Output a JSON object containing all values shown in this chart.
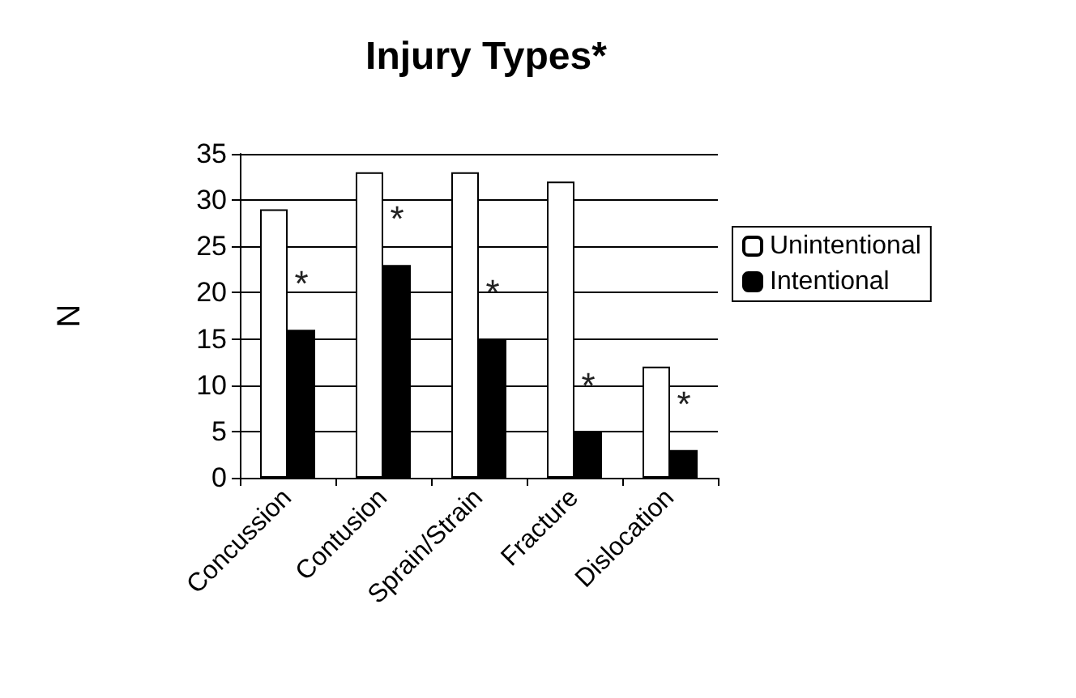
{
  "chart_data": {
    "type": "bar",
    "title": "Injury Types*",
    "ylabel": "N",
    "categories": [
      "Concussion",
      "Contusion",
      "Sprain/Strain",
      "Fracture",
      "Dislocation"
    ],
    "series": [
      {
        "name": "Unintentional",
        "color": "#ffffff",
        "values": [
          29,
          33,
          33,
          32,
          12
        ]
      },
      {
        "name": "Intentional",
        "color": "#000000",
        "values": [
          16,
          23,
          15,
          5,
          3
        ]
      }
    ],
    "ylim": [
      0,
      35
    ],
    "yticks": [
      0,
      5,
      10,
      15,
      20,
      25,
      30,
      35
    ],
    "grid": "y",
    "legend": "right",
    "annotations": [
      {
        "text": "*",
        "x": "Concussion",
        "y": 21
      },
      {
        "text": "*",
        "x": "Contusion",
        "y": 28
      },
      {
        "text": "*",
        "x": "Sprain/Strain",
        "y": 20
      },
      {
        "text": "*",
        "x": "Fracture",
        "y": 10
      },
      {
        "text": "*",
        "x": "Dislocation",
        "y": 8
      }
    ]
  }
}
